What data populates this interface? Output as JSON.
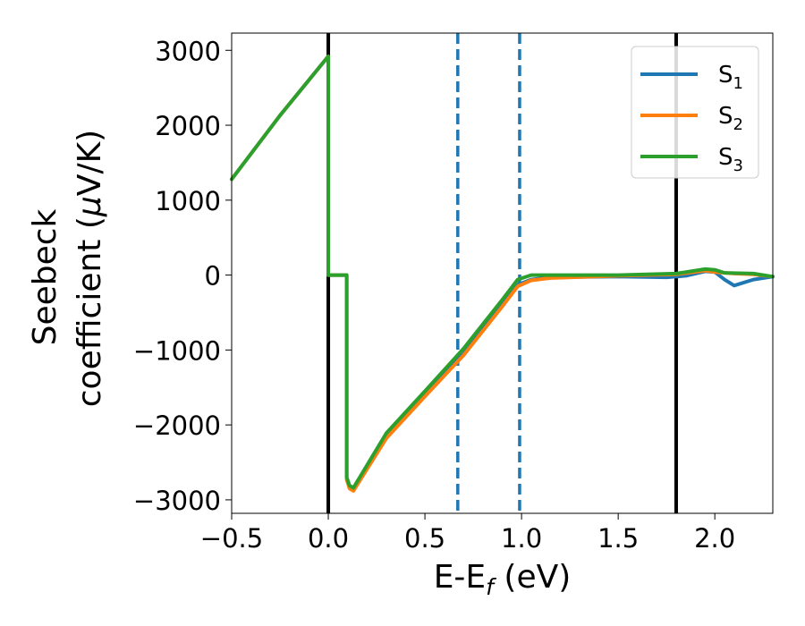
{
  "chart_data": {
    "type": "line",
    "xlabel": "E-E",
    "xlabel_sub": "f",
    "xlabel_unit": " (eV)",
    "ylabel_line1": "Seebeck",
    "ylabel_line2": "coefficient  (",
    "ylabel_mu": "μ",
    "ylabel_unit": "V/K)",
    "xlim": [
      -0.5,
      2.3
    ],
    "ylim": [
      -3180,
      3230
    ],
    "x_ticks": [
      -0.5,
      0.0,
      0.5,
      1.0,
      1.5,
      2.0
    ],
    "x_tick_labels": [
      "−0.5",
      "0.0",
      "0.5",
      "1.0",
      "1.5",
      "2.0"
    ],
    "y_ticks": [
      3000,
      2000,
      1000,
      0,
      -1000,
      -2000,
      -3000
    ],
    "y_tick_labels": [
      "3000",
      "2000",
      "1000",
      "0",
      "−1000",
      "−2000",
      "−3000"
    ],
    "grid": false,
    "legend_position": "top-right",
    "vertical_lines": [
      {
        "x": 0.0,
        "color": "#000000",
        "style": "solid"
      },
      {
        "x": 1.8,
        "color": "#000000",
        "style": "solid"
      },
      {
        "x": 0.67,
        "color": "#1f77b4",
        "style": "dashed"
      },
      {
        "x": 0.99,
        "color": "#1f77b4",
        "style": "dashed"
      }
    ],
    "series": [
      {
        "name": "S",
        "sub": "1",
        "color": "#1f77b4",
        "points": [
          [
            -0.5,
            1280
          ],
          [
            -0.25,
            2130
          ],
          [
            0.0,
            2920
          ],
          [
            0.0,
            0
          ],
          [
            0.095,
            0
          ],
          [
            0.095,
            -2700
          ],
          [
            0.11,
            -2820
          ],
          [
            0.13,
            -2860
          ],
          [
            0.3,
            -2150
          ],
          [
            0.5,
            -1590
          ],
          [
            0.7,
            -1050
          ],
          [
            0.9,
            -400
          ],
          [
            0.98,
            -130
          ],
          [
            1.05,
            -60
          ],
          [
            1.15,
            -30
          ],
          [
            1.5,
            -20
          ],
          [
            1.75,
            -30
          ],
          [
            1.85,
            -10
          ],
          [
            1.95,
            50
          ],
          [
            2.0,
            40
          ],
          [
            2.05,
            -60
          ],
          [
            2.1,
            -140
          ],
          [
            2.2,
            -60
          ],
          [
            2.3,
            -20
          ]
        ]
      },
      {
        "name": "S",
        "sub": "2",
        "color": "#ff7f0e",
        "points": [
          [
            -0.5,
            1280
          ],
          [
            -0.25,
            2130
          ],
          [
            0.0,
            2920
          ],
          [
            0.0,
            0
          ],
          [
            0.095,
            0
          ],
          [
            0.095,
            -2730
          ],
          [
            0.11,
            -2850
          ],
          [
            0.13,
            -2880
          ],
          [
            0.3,
            -2180
          ],
          [
            0.5,
            -1620
          ],
          [
            0.7,
            -1070
          ],
          [
            0.9,
            -420
          ],
          [
            0.98,
            -150
          ],
          [
            1.05,
            -70
          ],
          [
            1.15,
            -40
          ],
          [
            1.5,
            -10
          ],
          [
            1.8,
            10
          ],
          [
            1.95,
            60
          ],
          [
            2.0,
            40
          ],
          [
            2.1,
            20
          ],
          [
            2.2,
            10
          ],
          [
            2.3,
            -20
          ]
        ]
      },
      {
        "name": "S",
        "sub": "3",
        "color": "#2ca02c",
        "points": [
          [
            -0.5,
            1280
          ],
          [
            -0.25,
            2130
          ],
          [
            0.0,
            2920
          ],
          [
            0.0,
            0
          ],
          [
            0.095,
            0
          ],
          [
            0.095,
            -2700
          ],
          [
            0.11,
            -2810
          ],
          [
            0.13,
            -2840
          ],
          [
            0.3,
            -2110
          ],
          [
            0.5,
            -1550
          ],
          [
            0.7,
            -980
          ],
          [
            0.9,
            -330
          ],
          [
            0.98,
            -60
          ],
          [
            1.05,
            0
          ],
          [
            1.15,
            0
          ],
          [
            1.5,
            0
          ],
          [
            1.8,
            20
          ],
          [
            1.95,
            80
          ],
          [
            2.0,
            70
          ],
          [
            2.05,
            30
          ],
          [
            2.2,
            20
          ],
          [
            2.3,
            -20
          ]
        ]
      }
    ]
  }
}
